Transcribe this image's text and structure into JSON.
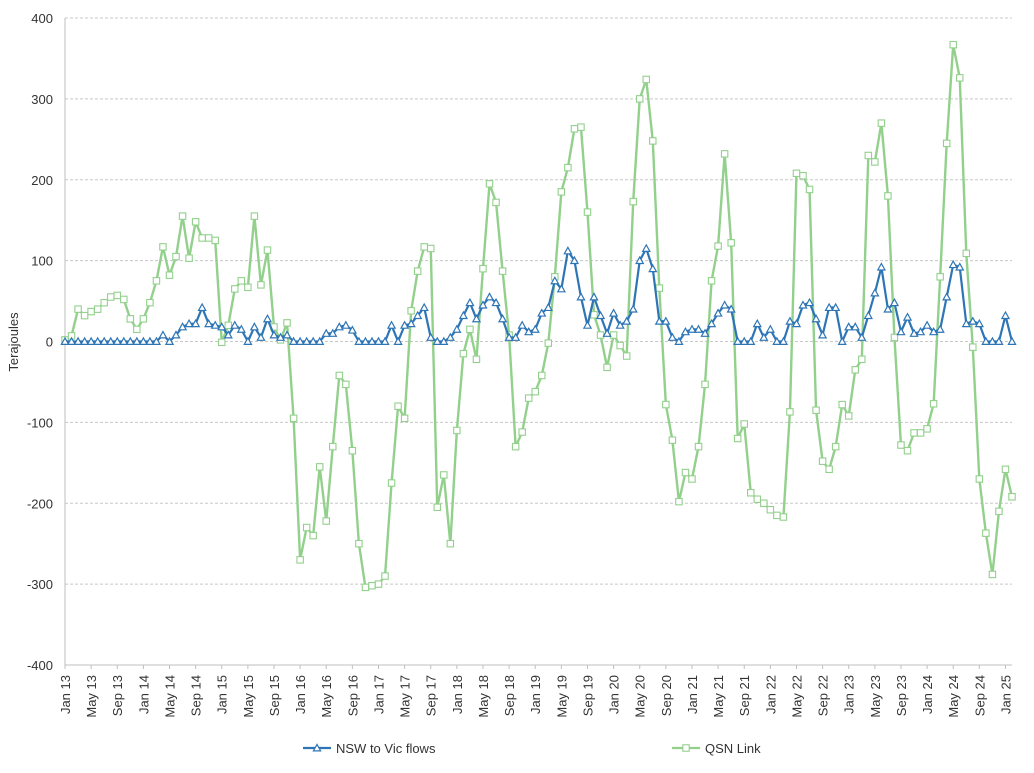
{
  "chart_data": {
    "type": "line",
    "title": "",
    "xlabel": "",
    "ylabel": "Terajoules",
    "ylim": [
      -400,
      400
    ],
    "yticks": [
      "400",
      "300",
      "200",
      "100",
      "0",
      "-100",
      "-200",
      "-300",
      "-400"
    ],
    "grid": true,
    "legend_position": "bottom",
    "x_tick_labels": [
      "Jan 13",
      "May 13",
      "Sep 13",
      "Jan 14",
      "May 14",
      "Sep 14",
      "Jan 15",
      "May 15",
      "Sep 15",
      "Jan 16",
      "May 16",
      "Sep 16",
      "Jan 17",
      "May 17",
      "Sep 17",
      "Jan 18",
      "May 18",
      "Sep 18",
      "Jan 19",
      "May 19",
      "Sep 19",
      "Jan 20",
      "May 20",
      "Sep 20",
      "Jan 21",
      "May 21",
      "Sep 21",
      "Jan 22",
      "May 22",
      "Sep 22",
      "Jan 23",
      "May 23",
      "Sep 23",
      "Jan 24",
      "May 24",
      "Sep 24",
      "Jan 25"
    ],
    "x_start": "Jan 13",
    "x_end": "Jan 25",
    "series": [
      {
        "name": "NSW to Vic flows",
        "color": "#2e75b6",
        "marker": "triangle",
        "values": [
          0,
          0,
          0,
          0,
          0,
          0,
          0,
          0,
          0,
          0,
          0,
          0,
          0,
          0,
          0,
          8,
          0,
          8,
          18,
          22,
          22,
          42,
          22,
          20,
          18,
          8,
          20,
          15,
          0,
          18,
          5,
          28,
          8,
          5,
          8,
          0,
          0,
          0,
          0,
          0,
          10,
          10,
          18,
          20,
          14,
          0,
          0,
          0,
          0,
          0,
          20,
          0,
          20,
          22,
          32,
          42,
          5,
          0,
          0,
          5,
          15,
          32,
          48,
          28,
          45,
          55,
          48,
          28,
          5,
          5,
          20,
          12,
          15,
          35,
          42,
          75,
          65,
          112,
          100,
          55,
          20,
          55,
          32,
          10,
          35,
          20,
          25,
          40,
          100,
          115,
          90,
          25,
          25,
          5,
          0,
          12,
          15,
          15,
          10,
          22,
          35,
          45,
          40,
          0,
          0,
          0,
          22,
          5,
          15,
          0,
          0,
          25,
          22,
          45,
          48,
          28,
          8,
          42,
          42,
          0,
          18,
          18,
          5,
          32,
          60,
          92,
          40,
          48,
          12,
          30,
          10,
          12,
          20,
          12,
          15,
          55,
          95,
          92,
          22,
          25,
          22,
          0,
          0,
          0,
          32,
          0
        ]
      },
      {
        "name": "QSN Link",
        "color": "#92d08c",
        "marker": "square",
        "values": [
          2,
          7,
          40,
          32,
          37,
          40,
          48,
          55,
          57,
          52,
          28,
          15,
          28,
          48,
          75,
          117,
          82,
          105,
          155,
          103,
          148,
          128,
          128,
          125,
          -1,
          20,
          65,
          75,
          67,
          155,
          70,
          113,
          18,
          2,
          23,
          -95,
          -270,
          -230,
          -240,
          -155,
          -222,
          -130,
          -42,
          -53,
          -135,
          -250,
          -304,
          -302,
          -300,
          -290,
          -175,
          -80,
          -95,
          38,
          87,
          117,
          115,
          -205,
          -165,
          -250,
          -110,
          -15,
          15,
          -22,
          90,
          195,
          172,
          87,
          8,
          -130,
          -112,
          -70,
          -62,
          -42,
          -2,
          80,
          185,
          215,
          263,
          265,
          160,
          33,
          8,
          -32,
          8,
          -5,
          -18,
          173,
          300,
          324,
          248,
          66,
          -78,
          -122,
          -198,
          -162,
          -170,
          -130,
          -53,
          75,
          118,
          232,
          122,
          -120,
          -102,
          -187,
          -195,
          -200,
          -208,
          -215,
          -217,
          -87,
          208,
          205,
          188,
          -85,
          -148,
          -158,
          -130,
          -78,
          -92,
          -35,
          -22,
          230,
          222,
          270,
          180,
          5,
          -128,
          -135,
          -113,
          -113,
          -108,
          -77,
          80,
          245,
          367,
          326,
          109,
          -7,
          -170,
          -237,
          -288,
          -210,
          -158,
          -192
        ]
      }
    ]
  }
}
